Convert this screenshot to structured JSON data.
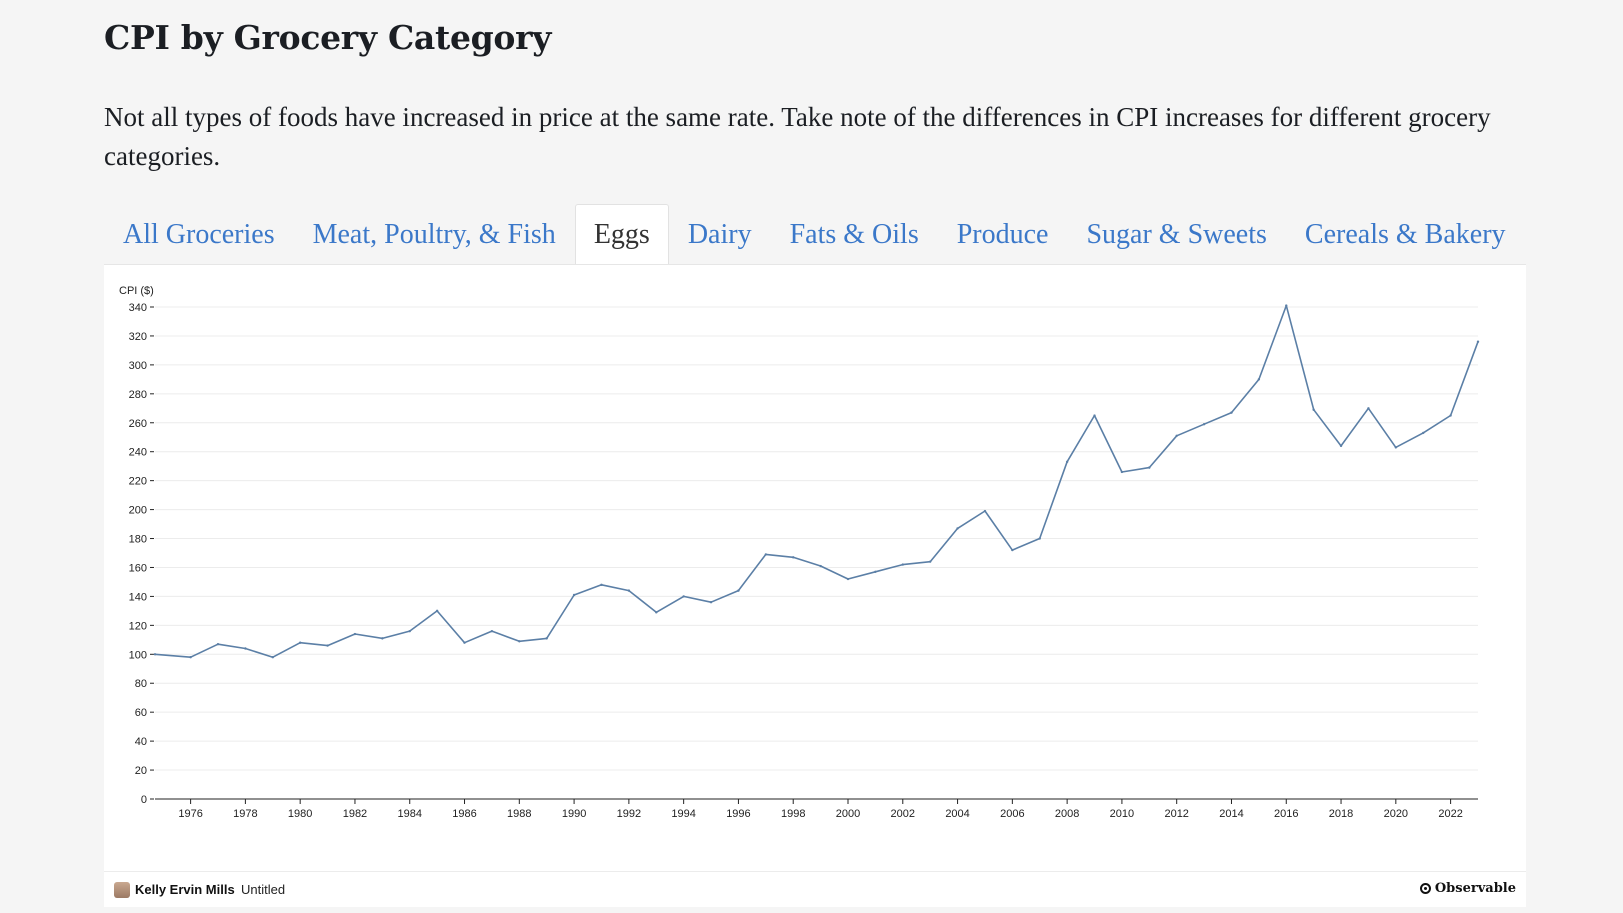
{
  "header": {
    "title": "CPI by Grocery Category",
    "intro": "Not all types of foods have increased in price at the same rate. Take note of the differences in CPI increases for different grocery categories."
  },
  "tabs": [
    {
      "label": "All Groceries",
      "active": false
    },
    {
      "label": "Meat, Poultry, & Fish",
      "active": false
    },
    {
      "label": "Eggs",
      "active": true
    },
    {
      "label": "Dairy",
      "active": false
    },
    {
      "label": "Fats & Oils",
      "active": false
    },
    {
      "label": "Produce",
      "active": false
    },
    {
      "label": "Sugar & Sweets",
      "active": false
    },
    {
      "label": "Cereals & Bakery",
      "active": false
    }
  ],
  "colors": {
    "accent": "#3b78c9",
    "line": "#5b7fa6",
    "grid": "#ececec"
  },
  "chart_data": {
    "type": "line",
    "ylabel": "CPI ($)",
    "xlabel": "",
    "ylim": [
      0,
      340
    ],
    "yticks": [
      0,
      20,
      40,
      60,
      80,
      100,
      120,
      140,
      160,
      180,
      200,
      220,
      240,
      260,
      280,
      300,
      320,
      340
    ],
    "xticks": [
      1976,
      1978,
      1980,
      1982,
      1984,
      1986,
      1988,
      1990,
      1992,
      1994,
      1996,
      1998,
      2000,
      2002,
      2004,
      2006,
      2008,
      2010,
      2012,
      2014,
      2016,
      2018,
      2020,
      2022
    ],
    "xlim": [
      1974.7,
      2023
    ],
    "grid": true,
    "x": [
      1974.7,
      1976,
      1977,
      1978,
      1979,
      1980,
      1981,
      1982,
      1983,
      1984,
      1985,
      1986,
      1987,
      1988,
      1989,
      1990,
      1991,
      1992,
      1993,
      1994,
      1995,
      1996,
      1997,
      1998,
      1999,
      2000,
      2001,
      2002,
      2003,
      2004,
      2005,
      2006,
      2007,
      2008,
      2009,
      2010,
      2011,
      2012,
      2013,
      2014,
      2015,
      2016,
      2017,
      2018,
      2019,
      2020,
      2021,
      2022,
      2023
    ],
    "values": [
      100,
      98,
      107,
      104,
      98,
      108,
      106,
      114,
      111,
      116,
      130,
      108,
      116,
      109,
      111,
      141,
      148,
      144,
      129,
      140,
      136,
      144,
      169,
      167,
      161,
      152,
      157,
      162,
      164,
      187,
      199,
      172,
      180,
      233,
      265,
      226,
      229,
      251,
      259,
      267,
      290,
      341,
      269,
      244,
      270,
      243,
      253,
      265,
      316
    ]
  },
  "footer": {
    "author": "Kelly Ervin Mills",
    "notebook": "Untitled",
    "brand": "Observable"
  }
}
